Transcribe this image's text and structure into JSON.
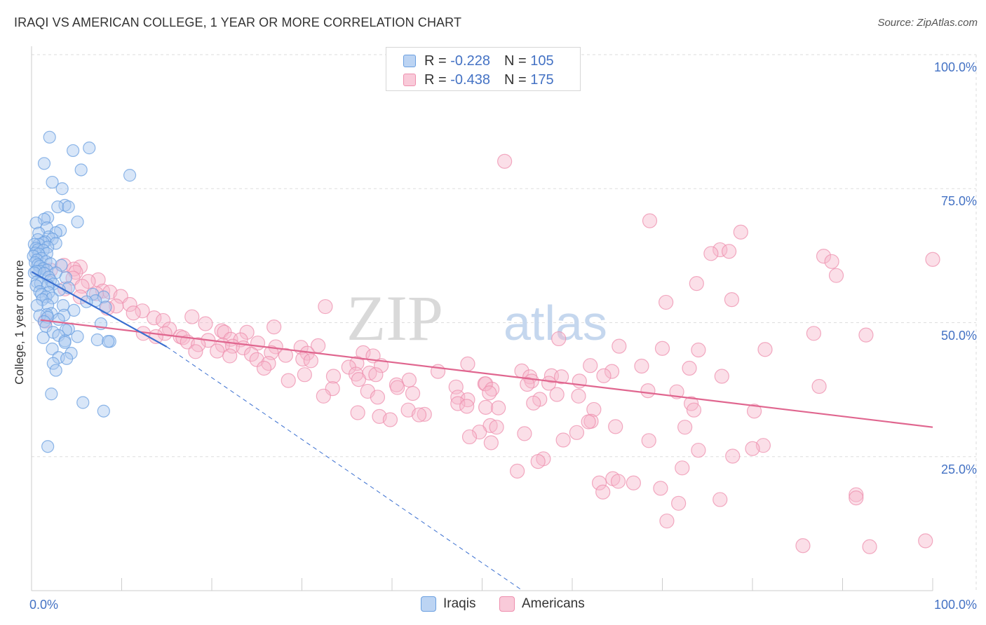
{
  "title": "IRAQI VS AMERICAN COLLEGE, 1 YEAR OR MORE CORRELATION CHART",
  "source": "Source: ZipAtlas.com",
  "watermark": {
    "zip": "ZIP",
    "atlas": "atlas"
  },
  "legend": {
    "r_label": "R =",
    "n_label": "N =",
    "series": [
      {
        "name": "Iraqis",
        "r": "-0.228",
        "n": "105"
      },
      {
        "name": "Americans",
        "r": "-0.438",
        "n": "175"
      }
    ]
  },
  "colors": {
    "iraqis_fill": "#a8c8ef",
    "iraqis_stroke": "#6a9fe0",
    "iraqis_line": "#3a6fd0",
    "americans_fill": "#f6b8cb",
    "americans_stroke": "#ee8fae",
    "americans_line": "#e0668f",
    "tick_label": "#4472c4",
    "grid": "#dddddd"
  },
  "chart_data": {
    "type": "scatter",
    "title": "IRAQI VS AMERICAN COLLEGE, 1 YEAR OR MORE CORRELATION CHART",
    "xlabel": "",
    "ylabel": "College, 1 year or more",
    "xlim": [
      0,
      100
    ],
    "ylim": [
      0,
      100
    ],
    "x_tick_labels": [
      "0.0%",
      "100.0%"
    ],
    "y_tick_labels": [
      "25.0%",
      "50.0%",
      "75.0%",
      "100.0%"
    ],
    "y_ticks": [
      25,
      50,
      75,
      100
    ],
    "grid": true,
    "legend_position": "top-center",
    "series": [
      {
        "name": "Iraqis",
        "trend": {
          "x": [
            0,
            15
          ],
          "y": [
            59.5,
            45.5
          ],
          "extended_x": [
            15,
            54.5
          ],
          "extended_y": [
            45.5,
            0
          ]
        },
        "points": [
          [
            2.0,
            84.6
          ],
          [
            4.6,
            82.1
          ],
          [
            6.4,
            82.6
          ],
          [
            1.4,
            79.7
          ],
          [
            5.5,
            78.5
          ],
          [
            10.9,
            77.5
          ],
          [
            2.3,
            76.2
          ],
          [
            3.4,
            75.0
          ],
          [
            3.7,
            71.9
          ],
          [
            2.9,
            71.6
          ],
          [
            4.1,
            71.6
          ],
          [
            1.8,
            69.6
          ],
          [
            1.4,
            69.3
          ],
          [
            5.1,
            68.8
          ],
          [
            0.5,
            68.6
          ],
          [
            1.7,
            67.7
          ],
          [
            3.2,
            67.2
          ],
          [
            2.7,
            66.8
          ],
          [
            0.8,
            66.7
          ],
          [
            1.9,
            66.0
          ],
          [
            2.3,
            65.6
          ],
          [
            0.7,
            65.5
          ],
          [
            1.5,
            65.1
          ],
          [
            1.3,
            64.9
          ],
          [
            2.7,
            64.8
          ],
          [
            0.8,
            64.6
          ],
          [
            0.3,
            64.6
          ],
          [
            1.8,
            64.1
          ],
          [
            0.5,
            63.9
          ],
          [
            0.7,
            63.6
          ],
          [
            1.3,
            63.5
          ],
          [
            0.4,
            63.0
          ],
          [
            1.7,
            62.9
          ],
          [
            0.8,
            62.8
          ],
          [
            0.2,
            62.4
          ],
          [
            1.1,
            62.0
          ],
          [
            0.6,
            61.7
          ],
          [
            1.6,
            61.4
          ],
          [
            0.4,
            61.2
          ],
          [
            2.1,
            61.0
          ],
          [
            0.7,
            60.8
          ],
          [
            3.3,
            60.7
          ],
          [
            0.9,
            60.5
          ],
          [
            1.3,
            60.1
          ],
          [
            1.7,
            59.8
          ],
          [
            0.9,
            59.6
          ],
          [
            0.5,
            59.6
          ],
          [
            0.3,
            59.3
          ],
          [
            2.7,
            59.3
          ],
          [
            1.4,
            59.2
          ],
          [
            1.9,
            58.5
          ],
          [
            3.8,
            58.4
          ],
          [
            2.1,
            57.9
          ],
          [
            0.6,
            57.6
          ],
          [
            1.0,
            57.3
          ],
          [
            2.4,
            57.2
          ],
          [
            1.8,
            57.0
          ],
          [
            0.5,
            56.9
          ],
          [
            4.1,
            56.5
          ],
          [
            3.1,
            56.1
          ],
          [
            0.9,
            55.8
          ],
          [
            1.9,
            55.6
          ],
          [
            1.1,
            55.3
          ],
          [
            6.8,
            55.3
          ],
          [
            1.6,
            54.8
          ],
          [
            8.0,
            54.8
          ],
          [
            2.3,
            54.6
          ],
          [
            1.2,
            54.3
          ],
          [
            7.1,
            54.1
          ],
          [
            6.1,
            53.9
          ],
          [
            1.8,
            53.3
          ],
          [
            0.6,
            53.2
          ],
          [
            3.5,
            53.2
          ],
          [
            8.2,
            52.9
          ],
          [
            4.7,
            52.3
          ],
          [
            2.2,
            51.7
          ],
          [
            1.7,
            51.5
          ],
          [
            3.6,
            51.4
          ],
          [
            0.9,
            51.3
          ],
          [
            1.8,
            51.0
          ],
          [
            3.0,
            50.6
          ],
          [
            1.4,
            50.2
          ],
          [
            7.7,
            49.8
          ],
          [
            1.6,
            49.3
          ],
          [
            4.1,
            48.8
          ],
          [
            3.8,
            48.6
          ],
          [
            2.4,
            48.2
          ],
          [
            3.0,
            47.6
          ],
          [
            5.1,
            47.4
          ],
          [
            1.3,
            47.2
          ],
          [
            7.3,
            46.8
          ],
          [
            3.7,
            46.6
          ],
          [
            8.7,
            46.5
          ],
          [
            8.5,
            46.5
          ],
          [
            3.7,
            46.3
          ],
          [
            2.3,
            45.1
          ],
          [
            4.4,
            44.3
          ],
          [
            3.0,
            43.5
          ],
          [
            3.9,
            43.3
          ],
          [
            2.4,
            42.4
          ],
          [
            2.7,
            41.1
          ],
          [
            2.2,
            36.7
          ],
          [
            5.7,
            35.1
          ],
          [
            8.0,
            33.5
          ],
          [
            1.8,
            26.9
          ]
        ]
      },
      {
        "name": "Americans",
        "trend": {
          "x": [
            1,
            100
          ],
          "y": [
            50.5,
            30.5
          ]
        },
        "points": [
          [
            52.5,
            80.1
          ],
          [
            68.6,
            69.0
          ],
          [
            78.7,
            66.9
          ],
          [
            76.4,
            63.6
          ],
          [
            77.4,
            63.3
          ],
          [
            75.4,
            62.9
          ],
          [
            87.9,
            62.4
          ],
          [
            100,
            61.8
          ],
          [
            88.8,
            61.4
          ],
          [
            3.6,
            60.7
          ],
          [
            5.4,
            60.4
          ],
          [
            4.7,
            60.0
          ],
          [
            2.1,
            59.8
          ],
          [
            4.9,
            59.4
          ],
          [
            89.3,
            58.8
          ],
          [
            4.6,
            58.3
          ],
          [
            7.4,
            58.0
          ],
          [
            6.3,
            57.7
          ],
          [
            73.8,
            57.3
          ],
          [
            5.6,
            56.8
          ],
          [
            3.7,
            56.3
          ],
          [
            7.9,
            55.9
          ],
          [
            8.7,
            55.7
          ],
          [
            7.2,
            55.4
          ],
          [
            9.9,
            54.9
          ],
          [
            5.4,
            54.8
          ],
          [
            77.7,
            54.3
          ],
          [
            70.4,
            53.8
          ],
          [
            10.9,
            53.4
          ],
          [
            9.4,
            53.1
          ],
          [
            32.6,
            53.0
          ],
          [
            8.4,
            52.7
          ],
          [
            12.3,
            52.2
          ],
          [
            11.3,
            51.8
          ],
          [
            17.8,
            51.1
          ],
          [
            13.6,
            50.9
          ],
          [
            14.6,
            50.4
          ],
          [
            1.5,
            50.3
          ],
          [
            19.3,
            49.8
          ],
          [
            26.9,
            49.2
          ],
          [
            15.3,
            48.8
          ],
          [
            21.1,
            48.5
          ],
          [
            21.4,
            48.2
          ],
          [
            23.9,
            48.2
          ],
          [
            14.8,
            48.0
          ],
          [
            12.4,
            48.0
          ],
          [
            86.8,
            48.0
          ],
          [
            92.6,
            47.7
          ],
          [
            13.8,
            47.4
          ],
          [
            16.5,
            47.4
          ],
          [
            16.8,
            47.2
          ],
          [
            58.5,
            47.0
          ],
          [
            22.1,
            46.9
          ],
          [
            23.2,
            46.8
          ],
          [
            19.6,
            46.7
          ],
          [
            17.3,
            46.4
          ],
          [
            25.1,
            46.2
          ],
          [
            18.5,
            45.9
          ],
          [
            21.2,
            45.8
          ],
          [
            31.8,
            45.7
          ],
          [
            22.3,
            45.6
          ],
          [
            65.2,
            45.6
          ],
          [
            27.1,
            45.5
          ],
          [
            29.9,
            45.4
          ],
          [
            23.5,
            45.3
          ],
          [
            70.0,
            45.2
          ],
          [
            81.4,
            45.0
          ],
          [
            74.0,
            44.9
          ],
          [
            20.6,
            44.7
          ],
          [
            18.2,
            44.6
          ],
          [
            26.6,
            44.4
          ],
          [
            36.8,
            44.4
          ],
          [
            30.6,
            44.3
          ],
          [
            24.4,
            44.1
          ],
          [
            28.2,
            43.9
          ],
          [
            37.9,
            43.8
          ],
          [
            22.0,
            43.8
          ],
          [
            30.1,
            43.2
          ],
          [
            25.0,
            43.1
          ],
          [
            31.0,
            42.9
          ],
          [
            26.3,
            42.4
          ],
          [
            36.1,
            42.4
          ],
          [
            48.4,
            42.3
          ],
          [
            38.8,
            42.0
          ],
          [
            62.0,
            42.0
          ],
          [
            67.7,
            41.9
          ],
          [
            35.2,
            41.7
          ],
          [
            25.8,
            41.5
          ],
          [
            73.0,
            41.5
          ],
          [
            54.4,
            41.0
          ],
          [
            45.1,
            40.9
          ],
          [
            64.4,
            40.9
          ],
          [
            37.5,
            40.6
          ],
          [
            36.0,
            40.4
          ],
          [
            38.2,
            40.3
          ],
          [
            30.3,
            40.3
          ],
          [
            57.7,
            40.1
          ],
          [
            63.5,
            40.1
          ],
          [
            33.5,
            40.0
          ],
          [
            76.6,
            40.0
          ],
          [
            55.3,
            39.9
          ],
          [
            58.8,
            39.9
          ],
          [
            36.3,
            39.4
          ],
          [
            41.9,
            39.3
          ],
          [
            28.5,
            39.2
          ],
          [
            55.5,
            39.1
          ],
          [
            60.8,
            39.1
          ],
          [
            57.4,
            38.7
          ],
          [
            50.3,
            38.6
          ],
          [
            50.4,
            38.6
          ],
          [
            55.0,
            38.5
          ],
          [
            40.5,
            38.4
          ],
          [
            87.4,
            38.1
          ],
          [
            47.1,
            38.0
          ],
          [
            40.6,
            37.9
          ],
          [
            33.4,
            37.7
          ],
          [
            51.1,
            37.6
          ],
          [
            68.4,
            37.3
          ],
          [
            37.3,
            37.2
          ],
          [
            71.6,
            37.1
          ],
          [
            50.8,
            36.9
          ],
          [
            42.3,
            36.8
          ],
          [
            58.3,
            36.6
          ],
          [
            60.7,
            36.3
          ],
          [
            32.4,
            36.3
          ],
          [
            38.4,
            36.1
          ],
          [
            47.3,
            36.1
          ],
          [
            56.4,
            35.7
          ],
          [
            48.4,
            35.6
          ],
          [
            55.7,
            35.0
          ],
          [
            47.3,
            34.9
          ],
          [
            73.2,
            34.9
          ],
          [
            48.3,
            34.4
          ],
          [
            50.4,
            34.2
          ],
          [
            51.8,
            34.1
          ],
          [
            62.4,
            33.8
          ],
          [
            41.8,
            33.7
          ],
          [
            73.5,
            33.7
          ],
          [
            80.2,
            33.5
          ],
          [
            36.2,
            33.2
          ],
          [
            43.6,
            32.9
          ],
          [
            43.0,
            32.8
          ],
          [
            38.6,
            32.5
          ],
          [
            39.8,
            31.9
          ],
          [
            62.1,
            31.6
          ],
          [
            61.8,
            31.5
          ],
          [
            50.9,
            30.8
          ],
          [
            64.8,
            30.6
          ],
          [
            72.5,
            30.5
          ],
          [
            51.6,
            30.5
          ],
          [
            49.7,
            29.6
          ],
          [
            60.5,
            29.5
          ],
          [
            54.7,
            29.3
          ],
          [
            48.6,
            28.7
          ],
          [
            59.0,
            28.1
          ],
          [
            68.5,
            28.0
          ],
          [
            51.0,
            27.6
          ],
          [
            81.2,
            27.1
          ],
          [
            80.0,
            26.5
          ],
          [
            74.0,
            26.2
          ],
          [
            77.8,
            25.1
          ],
          [
            56.8,
            24.6
          ],
          [
            56.2,
            24.1
          ],
          [
            72.2,
            22.9
          ],
          [
            53.9,
            22.3
          ],
          [
            64.5,
            20.9
          ],
          [
            65.1,
            20.4
          ],
          [
            63.0,
            20.1
          ],
          [
            66.8,
            20.1
          ],
          [
            69.8,
            19.1
          ],
          [
            63.4,
            18.4
          ],
          [
            91.5,
            17.9
          ],
          [
            91.5,
            17.3
          ],
          [
            76.4,
            17.0
          ],
          [
            71.8,
            16.3
          ],
          [
            70.5,
            13.0
          ],
          [
            99.2,
            9.3
          ],
          [
            85.6,
            8.4
          ],
          [
            93.0,
            8.2
          ]
        ]
      }
    ]
  }
}
